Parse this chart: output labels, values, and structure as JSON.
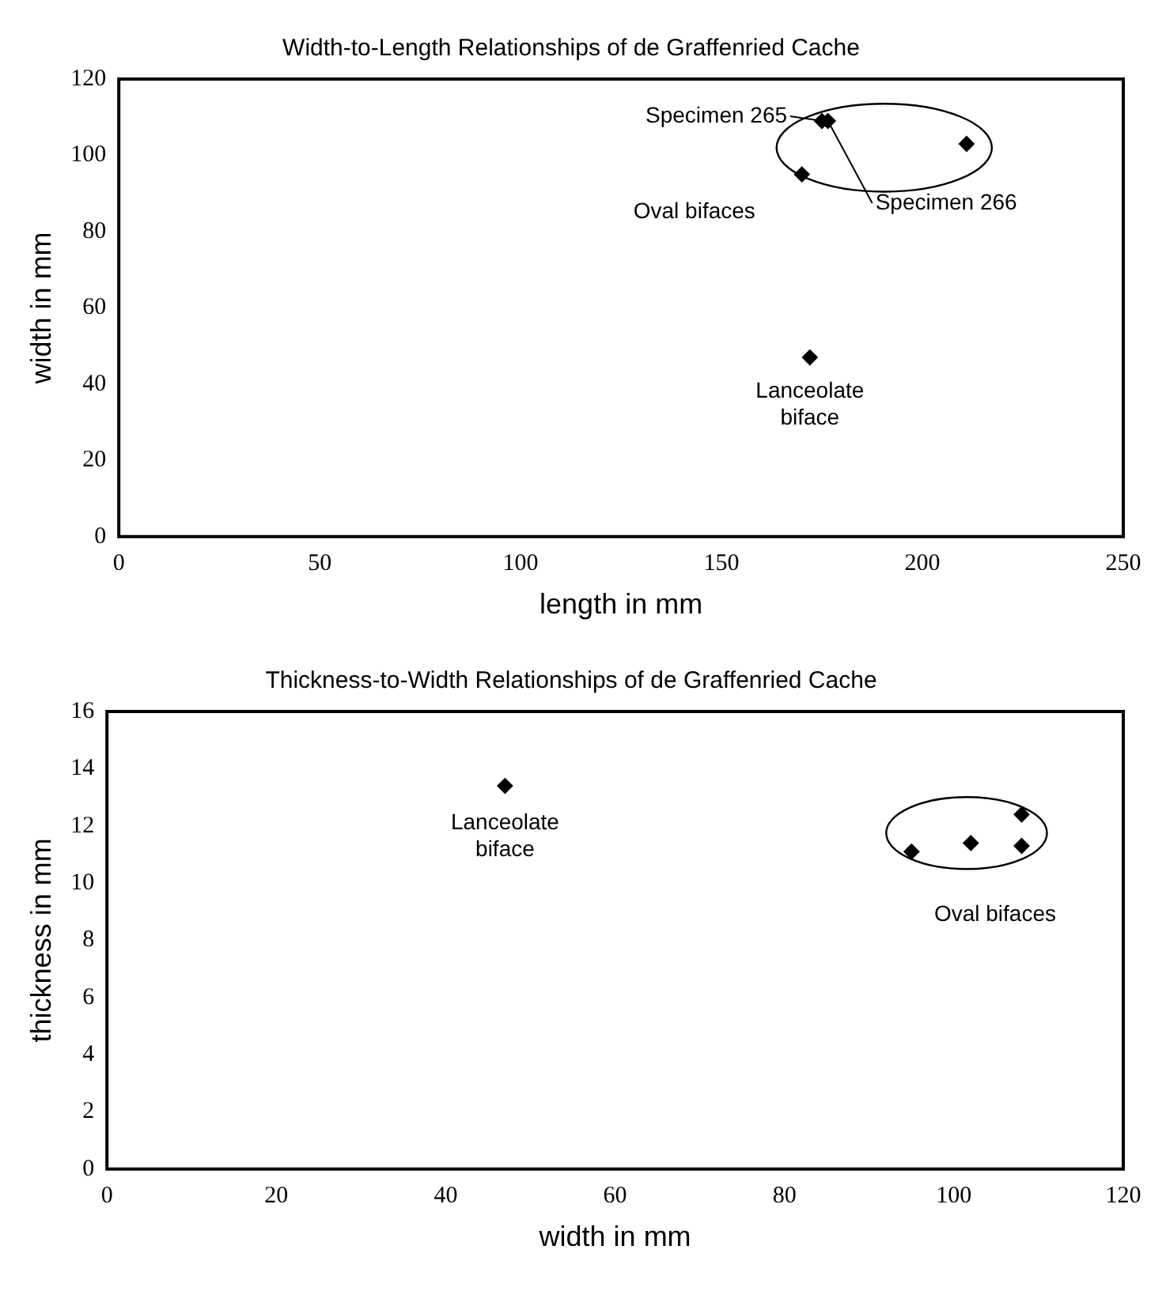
{
  "chart_data": [
    {
      "type": "scatter",
      "title": "Width-to-Length Relationships of de Graffenried Cache",
      "xlabel": "length in mm",
      "ylabel": "width in mm",
      "xlim": [
        0,
        250
      ],
      "xticks": [
        0,
        50,
        100,
        150,
        200,
        250
      ],
      "ylim": [
        0,
        120
      ],
      "yticks": [
        0,
        20,
        40,
        60,
        80,
        100,
        120
      ],
      "grid": false,
      "legend": false,
      "marker": "diamond",
      "series": [
        {
          "color": "#000000",
          "x": [
            172
          ],
          "values": [
            47
          ]
        },
        {
          "color": "#000000",
          "x": [
            170,
            175,
            176.5,
            211
          ],
          "values": [
            95,
            109,
            109,
            103
          ]
        }
      ],
      "annotations": [
        {
          "text": "Specimen 265",
          "x": 175,
          "y": 109
        },
        {
          "text": "Specimen 266",
          "x": 176.5,
          "y": 109
        },
        "Lanceolate\nbiface",
        "Oval bifaces"
      ]
    },
    {
      "type": "scatter",
      "title": "Thickness-to-Width Relationships of de Graffenried Cache",
      "xlabel": "width in mm",
      "ylabel": "thickness in mm",
      "xlim": [
        0,
        120
      ],
      "xticks": [
        0,
        20,
        40,
        60,
        80,
        100,
        120
      ],
      "ylim": [
        0,
        16
      ],
      "yticks": [
        0,
        2,
        4,
        6,
        8,
        10,
        12,
        14,
        16
      ],
      "grid": false,
      "legend": false,
      "marker": "diamond",
      "series": [
        {
          "color": "#000000",
          "x": [
            47
          ],
          "values": [
            13.4
          ]
        },
        {
          "color": "#000000",
          "x": [
            95,
            102,
            108,
            108
          ],
          "values": [
            11.1,
            11.4,
            12.4,
            11.3
          ]
        }
      ],
      "annotations": [
        "Lanceolate\nbiface",
        "Oval bifaces"
      ]
    }
  ]
}
